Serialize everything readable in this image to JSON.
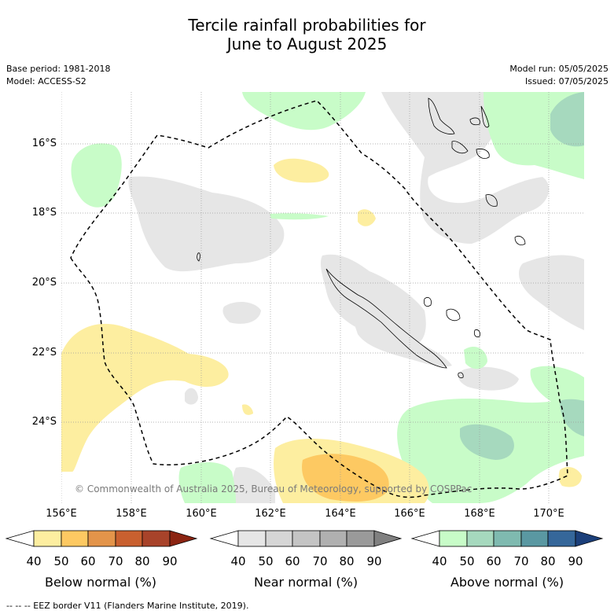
{
  "title_line1": "Tercile rainfall probabilities for",
  "title_line2": "June to August 2025",
  "base_period": "Base period: 1981-2018",
  "model": "Model: ACCESS-S2",
  "model_run": "Model run: 05/05/2025",
  "issued": "Issued: 07/05/2025",
  "credit": "© Commonwealth of Australia 2025, Bureau of Meteorology, supported by COSPPac",
  "footer": "-- -- -- EEZ border V11 (Flanders Marine Institute, 2019).",
  "lat_labels": [
    "16°S",
    "18°S",
    "20°S",
    "22°S",
    "24°S"
  ],
  "lon_labels": [
    "156°E",
    "158°E",
    "160°E",
    "162°E",
    "164°E",
    "166°E",
    "168°E",
    "170°E"
  ],
  "colorbars": [
    {
      "label": "Below normal (%)",
      "ticks": [
        "40",
        "50",
        "60",
        "70",
        "80",
        "90"
      ],
      "colors": [
        "#ffffff",
        "#fdeea0",
        "#fdc962",
        "#e3944a",
        "#c9602f",
        "#a8432a",
        "#8b2412"
      ]
    },
    {
      "label": "Near normal (%)",
      "ticks": [
        "40",
        "50",
        "60",
        "70",
        "80",
        "90"
      ],
      "colors": [
        "#ffffff",
        "#e6e6e6",
        "#d6d6d6",
        "#c4c4c4",
        "#b0b0b0",
        "#9a9a9a",
        "#808080"
      ]
    },
    {
      "label": "Above normal (%)",
      "ticks": [
        "40",
        "50",
        "60",
        "70",
        "80",
        "90"
      ],
      "colors": [
        "#ffffff",
        "#c8fcc8",
        "#a6d9be",
        "#7fbab0",
        "#5a98a2",
        "#35679a",
        "#1b3f7a"
      ]
    }
  ]
}
